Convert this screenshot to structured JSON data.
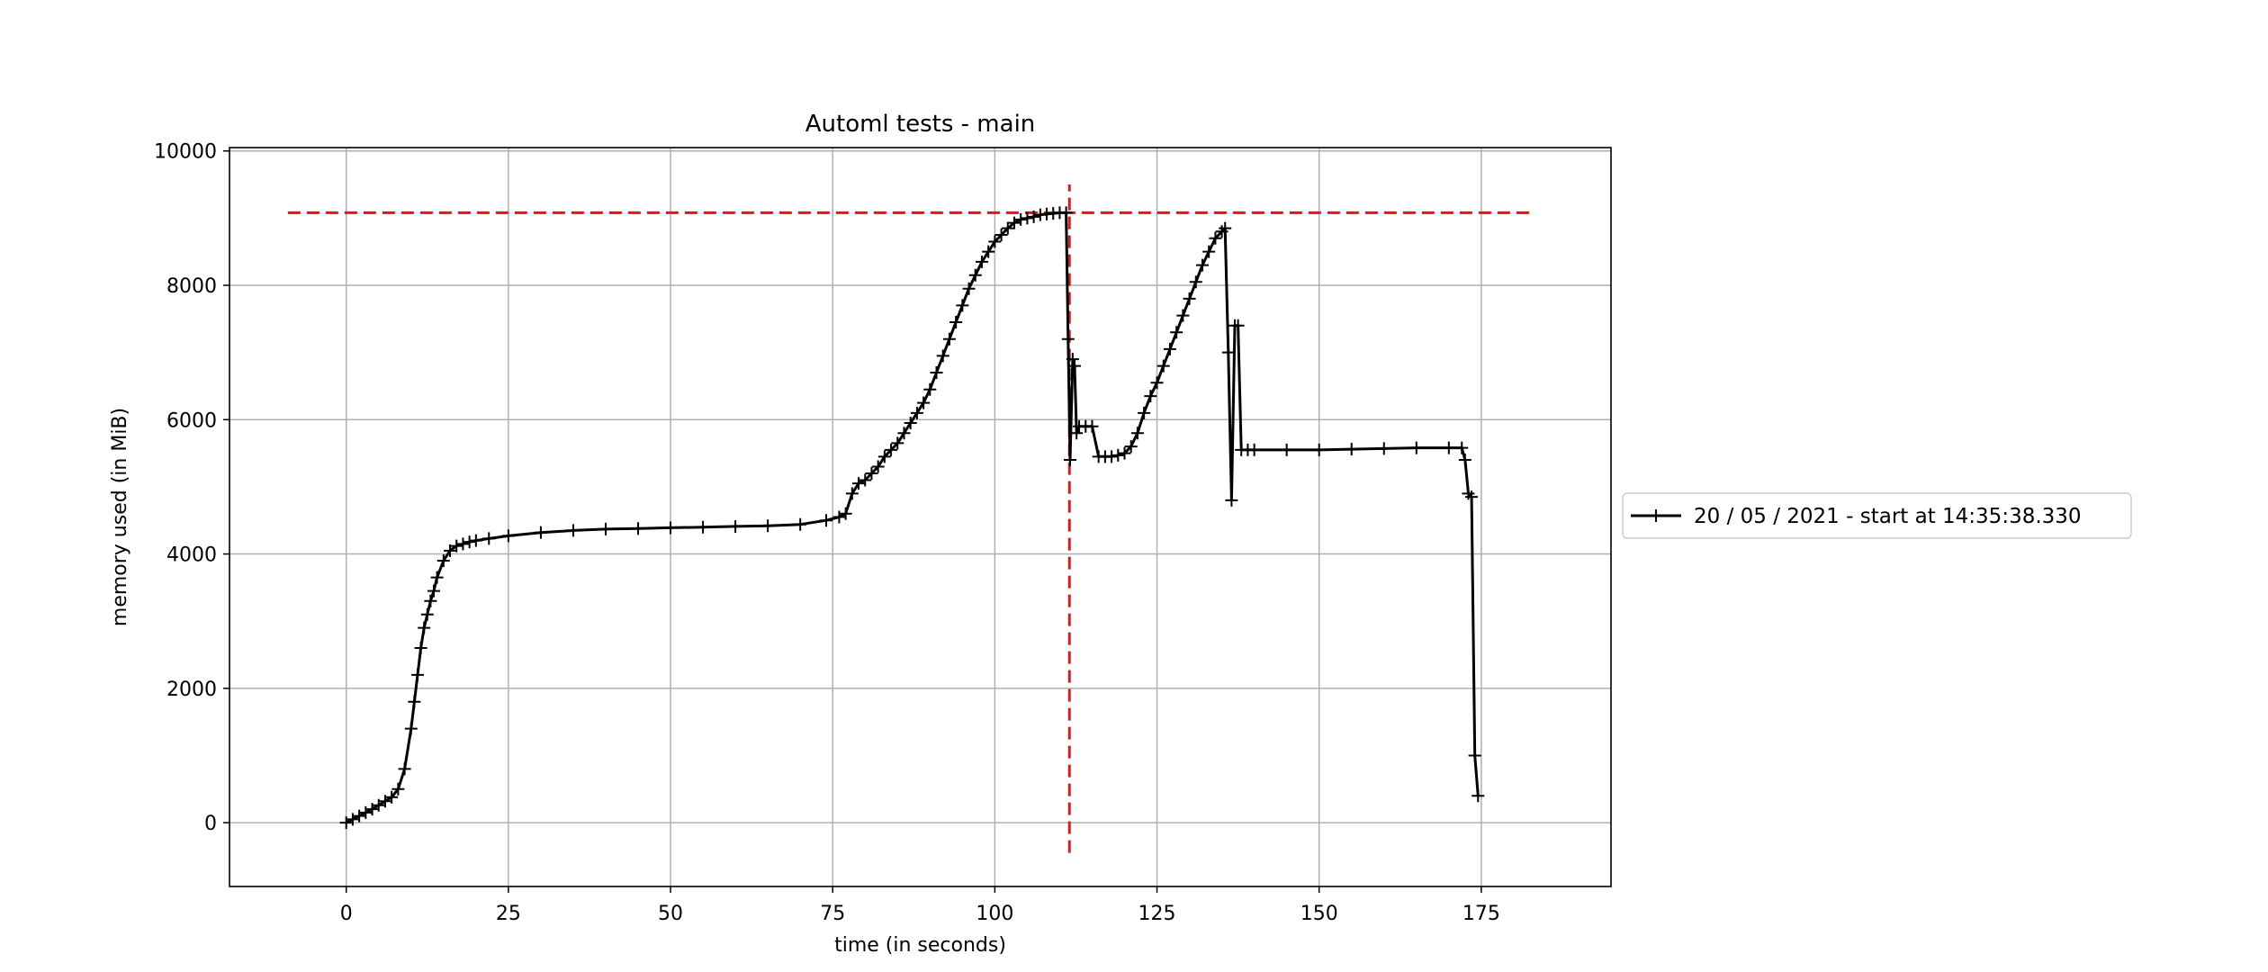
{
  "chart_data": {
    "type": "line",
    "title": "Automl tests - main",
    "xlabel": "time (in seconds)",
    "ylabel": "memory used (in MiB)",
    "xlim": [
      -18,
      195
    ],
    "ylim": [
      -950,
      10050
    ],
    "xticks": [
      0,
      25,
      50,
      75,
      100,
      125,
      150,
      175
    ],
    "yticks": [
      0,
      2000,
      4000,
      6000,
      8000,
      10000
    ],
    "grid": true,
    "legend_position": "right",
    "series": [
      {
        "name": "20 / 05 / 2021 - start at 14:35:38.330",
        "color": "#000000",
        "marker": "plus",
        "x": [
          0,
          1,
          2,
          3,
          4,
          5,
          6,
          7,
          8,
          9,
          10,
          10.5,
          11,
          11.5,
          12,
          12.5,
          13,
          13.5,
          14,
          15,
          16,
          17,
          18,
          19,
          20,
          22,
          25,
          30,
          35,
          40,
          45,
          50,
          55,
          60,
          65,
          70,
          74,
          76,
          77,
          78,
          79,
          80,
          81,
          82,
          83,
          84,
          85,
          86,
          87,
          88,
          89,
          90,
          91,
          92,
          93,
          94,
          95,
          96,
          97,
          98,
          99,
          100,
          101,
          102,
          103,
          104,
          105,
          106,
          107,
          108,
          109,
          110,
          111,
          111.3,
          111.6,
          112,
          112.3,
          112.6,
          113,
          114,
          115,
          116,
          117,
          118,
          119,
          120,
          121,
          122,
          123,
          124,
          125,
          126,
          127,
          128,
          129,
          130,
          131,
          132,
          133,
          134,
          135,
          135.5,
          136,
          136.5,
          137,
          137.5,
          138,
          139,
          140,
          145,
          150,
          155,
          160,
          165,
          170,
          172,
          172.5,
          173,
          173.5,
          174,
          174.5
        ],
        "values": [
          0,
          50,
          100,
          150,
          200,
          260,
          320,
          380,
          500,
          800,
          1400,
          1800,
          2200,
          2600,
          2900,
          3100,
          3300,
          3450,
          3650,
          3900,
          4050,
          4120,
          4150,
          4180,
          4200,
          4230,
          4270,
          4320,
          4350,
          4370,
          4380,
          4390,
          4400,
          4410,
          4420,
          4440,
          4500,
          4550,
          4600,
          4900,
          5050,
          5100,
          5200,
          5300,
          5450,
          5550,
          5650,
          5800,
          5950,
          6100,
          6250,
          6450,
          6700,
          6950,
          7200,
          7450,
          7700,
          7950,
          8150,
          8350,
          8500,
          8650,
          8750,
          8850,
          8930,
          8980,
          9000,
          9020,
          9050,
          9060,
          9070,
          9080,
          9080,
          7200,
          5400,
          6900,
          6800,
          5800,
          5900,
          5900,
          5900,
          5450,
          5450,
          5450,
          5470,
          5500,
          5600,
          5800,
          6100,
          6350,
          6550,
          6800,
          7050,
          7300,
          7550,
          7800,
          8050,
          8300,
          8500,
          8700,
          8800,
          8850,
          7000,
          4800,
          7400,
          7400,
          5550,
          5550,
          5550,
          5550,
          5550,
          5560,
          5570,
          5580,
          5580,
          5580,
          5400,
          4900,
          4850,
          1000,
          400
        ]
      }
    ],
    "reference_lines": [
      {
        "orientation": "horizontal",
        "value": 9080,
        "from": -9,
        "to": 183,
        "color": "#ee1111",
        "style": "dashed"
      },
      {
        "orientation": "vertical",
        "value": 111.5,
        "from": -450,
        "to": 9500,
        "color": "#ee1111",
        "style": "dashed"
      }
    ]
  }
}
